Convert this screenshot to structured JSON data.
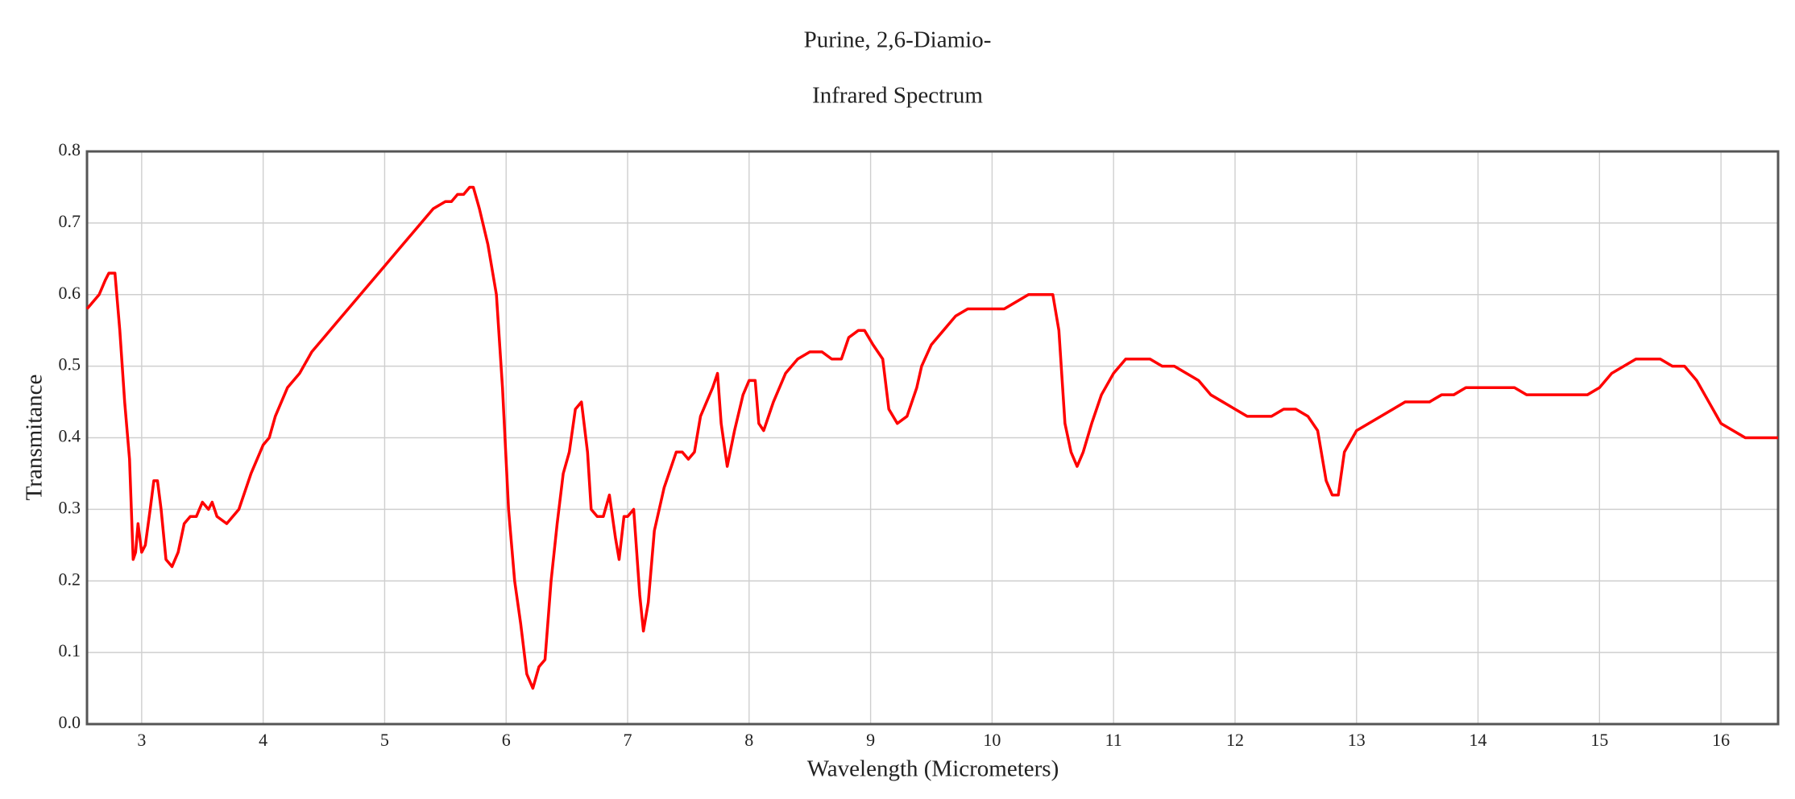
{
  "chart_data": {
    "type": "line",
    "title": "Purine, 2,6-Diamio-",
    "subtitle": "Infrared Spectrum",
    "x_label": "Wavelength (Micrometers)",
    "y_label": "Transmitance",
    "color": "#ff0000",
    "grid": true,
    "xlim": [
      2.55,
      16.47
    ],
    "ylim": [
      0,
      0.8
    ],
    "xticks": [
      3,
      4,
      5,
      6,
      7,
      8,
      9,
      10,
      11,
      12,
      13,
      14,
      15,
      16
    ],
    "yticks": [
      {
        "value": 0,
        "label": "0.0"
      },
      0.1,
      0.2,
      0.3,
      0.4,
      0.5,
      0.6,
      0.7,
      0.8
    ],
    "x": [
      2.55,
      2.6,
      2.65,
      2.7,
      2.73,
      2.78,
      2.82,
      2.86,
      2.9,
      2.93,
      2.95,
      2.97,
      3.0,
      3.03,
      3.07,
      3.1,
      3.13,
      3.16,
      3.2,
      3.25,
      3.3,
      3.35,
      3.4,
      3.45,
      3.5,
      3.55,
      3.58,
      3.62,
      3.7,
      3.8,
      3.9,
      4.0,
      4.05,
      4.1,
      4.15,
      4.2,
      4.3,
      4.4,
      4.5,
      4.6,
      4.7,
      4.8,
      4.9,
      5.0,
      5.1,
      5.2,
      5.3,
      5.4,
      5.5,
      5.55,
      5.6,
      5.65,
      5.7,
      5.73,
      5.78,
      5.85,
      5.92,
      5.97,
      6.02,
      6.07,
      6.12,
      6.17,
      6.22,
      6.27,
      6.32,
      6.37,
      6.42,
      6.47,
      6.52,
      6.57,
      6.62,
      6.67,
      6.7,
      6.75,
      6.8,
      6.85,
      6.9,
      6.93,
      6.97,
      7.0,
      7.05,
      7.1,
      7.13,
      7.17,
      7.22,
      7.3,
      7.4,
      7.45,
      7.5,
      7.55,
      7.6,
      7.65,
      7.7,
      7.74,
      7.77,
      7.82,
      7.88,
      7.95,
      8.0,
      8.05,
      8.08,
      8.12,
      8.2,
      8.3,
      8.4,
      8.5,
      8.6,
      8.68,
      8.76,
      8.82,
      8.9,
      8.95,
      9.02,
      9.1,
      9.15,
      9.22,
      9.3,
      9.38,
      9.42,
      9.5,
      9.6,
      9.7,
      9.8,
      9.9,
      10.0,
      10.1,
      10.2,
      10.3,
      10.4,
      10.5,
      10.55,
      10.6,
      10.65,
      10.7,
      10.75,
      10.82,
      10.9,
      11.0,
      11.1,
      11.2,
      11.3,
      11.4,
      11.5,
      11.6,
      11.7,
      11.8,
      11.9,
      12.0,
      12.1,
      12.2,
      12.3,
      12.4,
      12.5,
      12.6,
      12.68,
      12.75,
      12.8,
      12.85,
      12.9,
      13.0,
      13.1,
      13.2,
      13.3,
      13.4,
      13.5,
      13.6,
      13.7,
      13.8,
      13.9,
      14.0,
      14.1,
      14.2,
      14.3,
      14.4,
      14.5,
      14.6,
      14.7,
      14.8,
      14.9,
      15.0,
      15.1,
      15.2,
      15.3,
      15.4,
      15.5,
      15.6,
      15.7,
      15.8,
      15.9,
      16.0,
      16.1,
      16.2,
      16.3,
      16.47
    ],
    "values": [
      0.58,
      0.59,
      0.6,
      0.62,
      0.63,
      0.63,
      0.55,
      0.45,
      0.37,
      0.23,
      0.24,
      0.28,
      0.24,
      0.25,
      0.3,
      0.34,
      0.34,
      0.3,
      0.23,
      0.22,
      0.24,
      0.28,
      0.29,
      0.29,
      0.31,
      0.3,
      0.31,
      0.29,
      0.28,
      0.3,
      0.35,
      0.39,
      0.4,
      0.43,
      0.45,
      0.47,
      0.49,
      0.52,
      0.54,
      0.56,
      0.58,
      0.6,
      0.62,
      0.64,
      0.66,
      0.68,
      0.7,
      0.72,
      0.73,
      0.73,
      0.74,
      0.74,
      0.75,
      0.75,
      0.72,
      0.67,
      0.6,
      0.47,
      0.3,
      0.2,
      0.14,
      0.07,
      0.05,
      0.08,
      0.09,
      0.2,
      0.28,
      0.35,
      0.38,
      0.44,
      0.45,
      0.38,
      0.3,
      0.29,
      0.29,
      0.32,
      0.26,
      0.23,
      0.29,
      0.29,
      0.3,
      0.18,
      0.13,
      0.17,
      0.27,
      0.33,
      0.38,
      0.38,
      0.37,
      0.38,
      0.43,
      0.45,
      0.47,
      0.49,
      0.42,
      0.36,
      0.41,
      0.46,
      0.48,
      0.48,
      0.42,
      0.41,
      0.45,
      0.49,
      0.51,
      0.52,
      0.52,
      0.51,
      0.51,
      0.54,
      0.55,
      0.55,
      0.53,
      0.51,
      0.44,
      0.42,
      0.43,
      0.47,
      0.5,
      0.53,
      0.55,
      0.57,
      0.58,
      0.58,
      0.58,
      0.58,
      0.59,
      0.6,
      0.6,
      0.6,
      0.55,
      0.42,
      0.38,
      0.36,
      0.38,
      0.42,
      0.46,
      0.49,
      0.51,
      0.51,
      0.51,
      0.5,
      0.5,
      0.49,
      0.48,
      0.46,
      0.45,
      0.44,
      0.43,
      0.43,
      0.43,
      0.44,
      0.44,
      0.43,
      0.41,
      0.34,
      0.32,
      0.32,
      0.38,
      0.41,
      0.42,
      0.43,
      0.44,
      0.45,
      0.45,
      0.45,
      0.46,
      0.46,
      0.47,
      0.47,
      0.47,
      0.47,
      0.47,
      0.46,
      0.46,
      0.46,
      0.46,
      0.46,
      0.46,
      0.47,
      0.49,
      0.5,
      0.51,
      0.51,
      0.51,
      0.5,
      0.5,
      0.48,
      0.45,
      0.42,
      0.41,
      0.4,
      0.4,
      0.4
    ]
  }
}
